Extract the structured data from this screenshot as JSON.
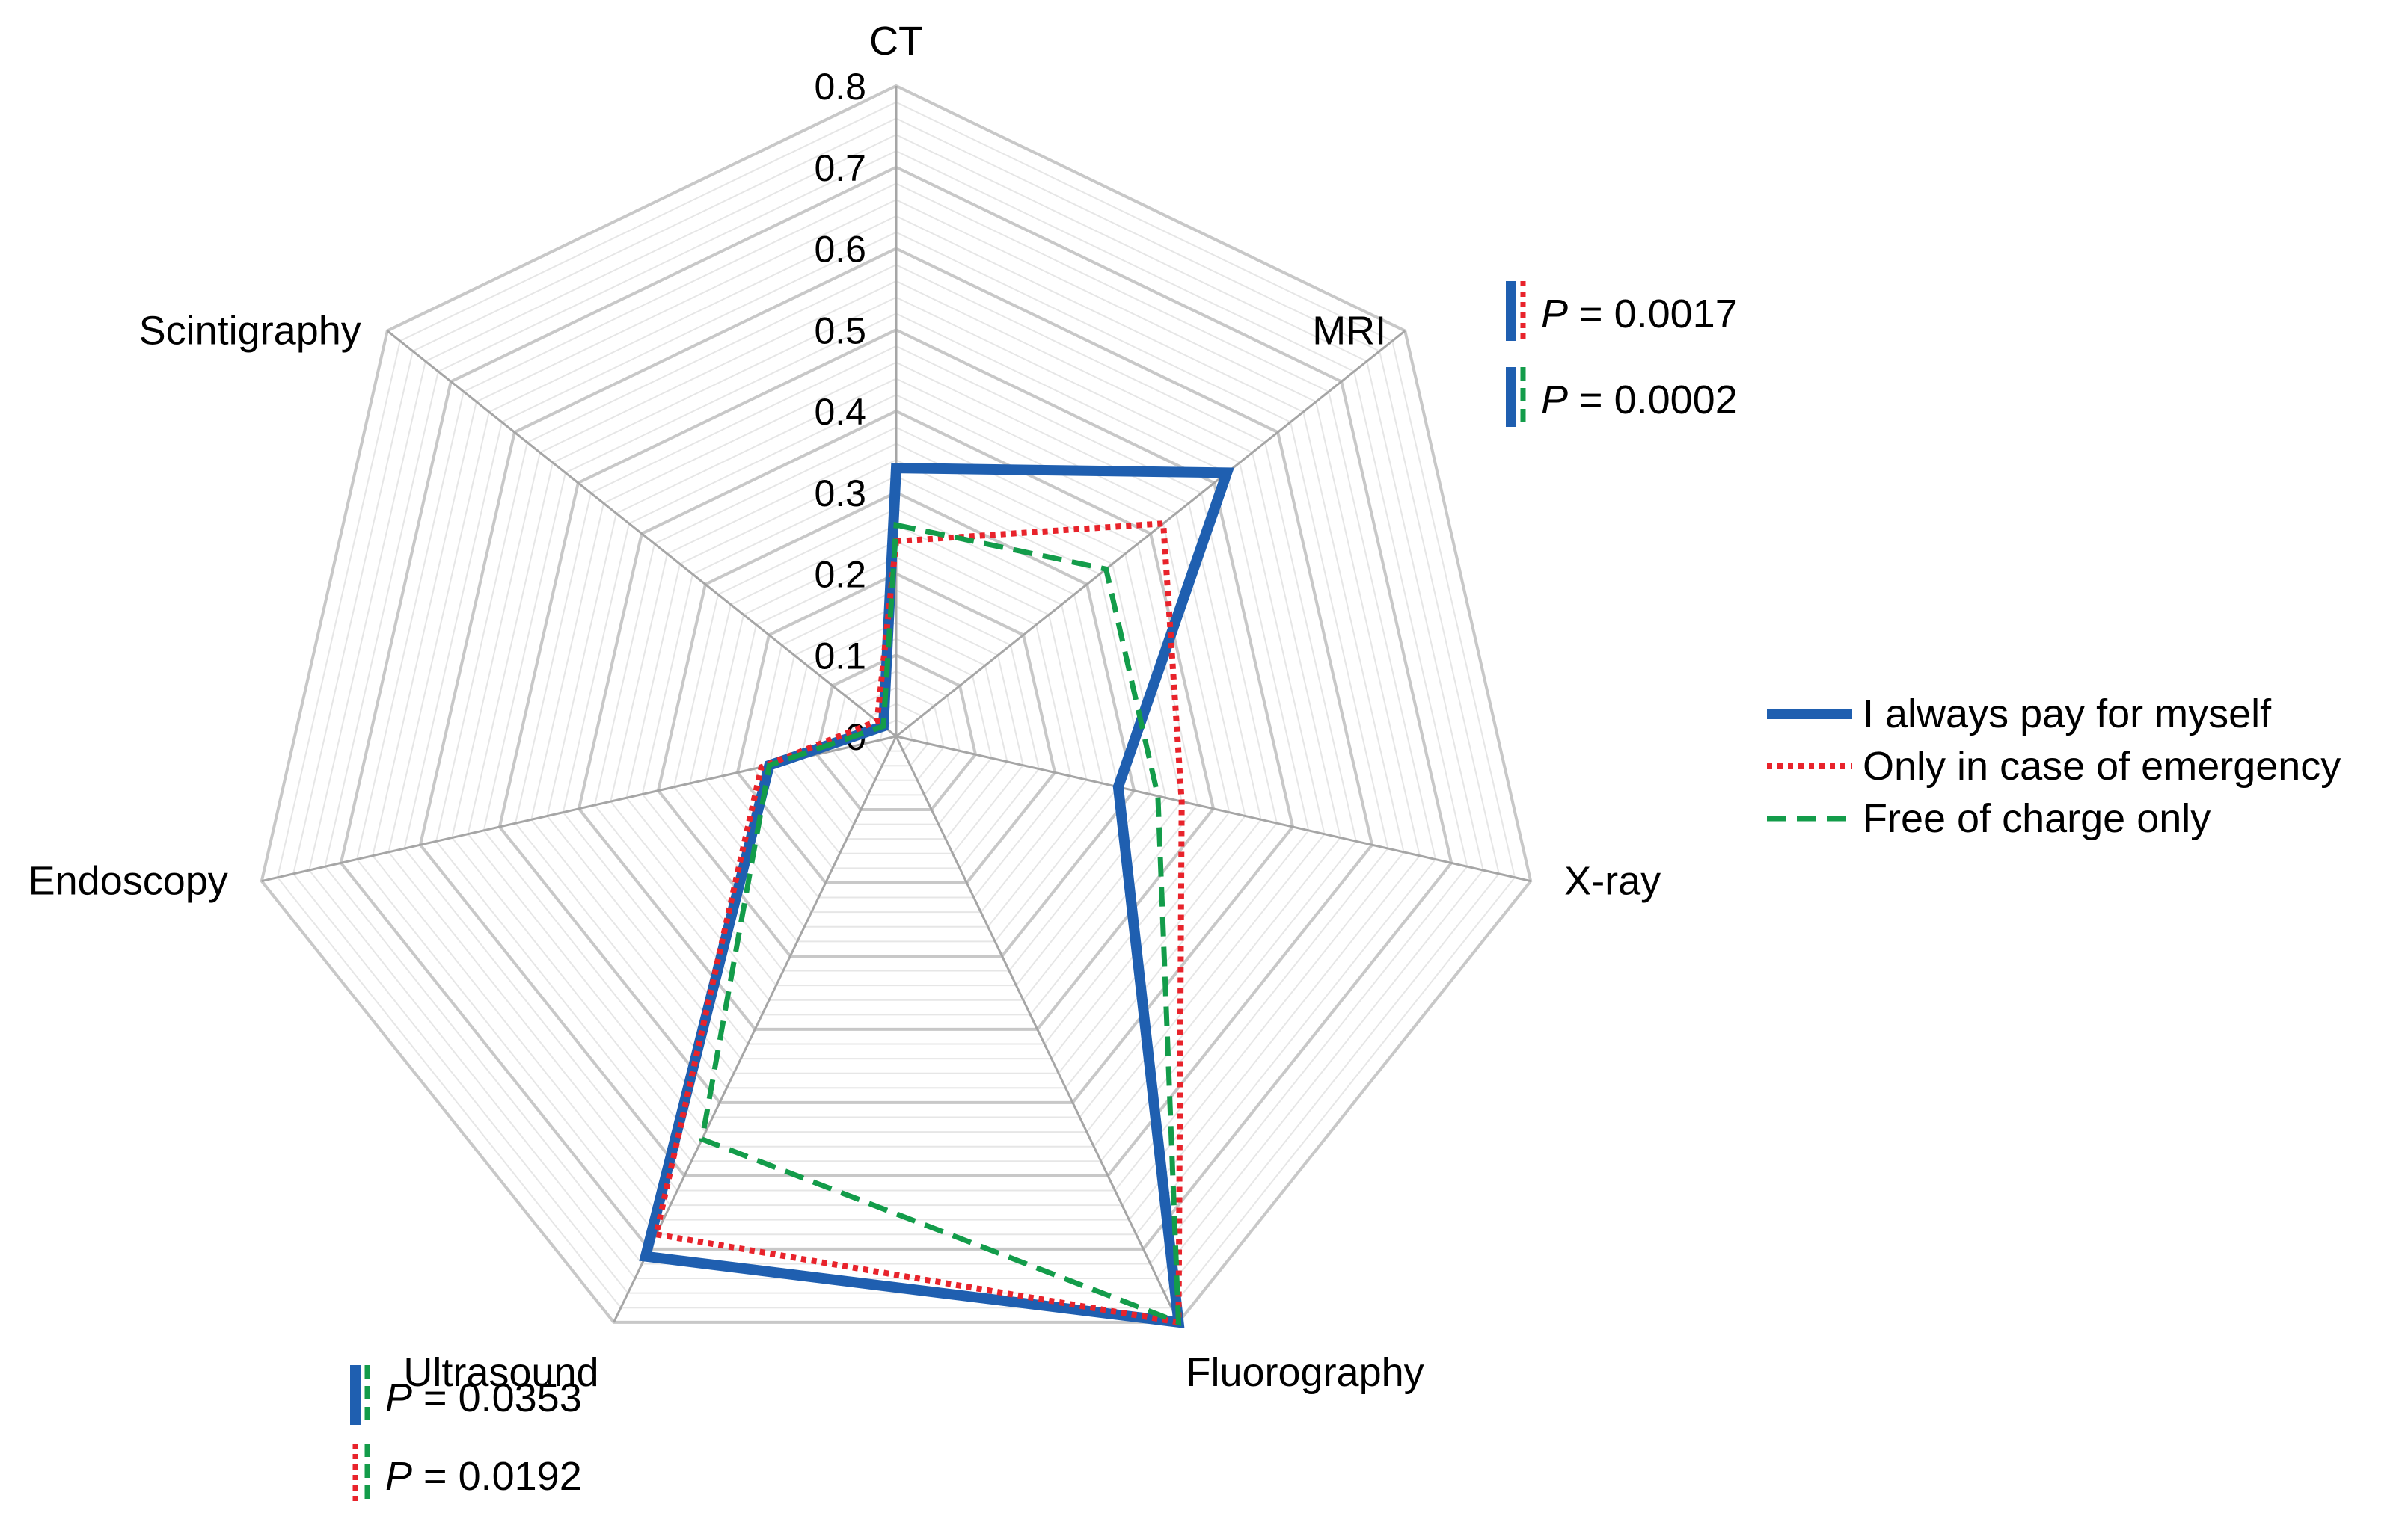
{
  "chart_data": {
    "type": "radar",
    "title": "",
    "categories": [
      "CT",
      "MRI",
      "X-ray",
      "Fluorography",
      "Ultrasound",
      "Endoscopy",
      "Scintigraphy"
    ],
    "radial_ticks": [
      "0",
      "0.1",
      "0.2",
      "0.3",
      "0.4",
      "0.5",
      "0.6",
      "0.7",
      "0.8"
    ],
    "rlim": [
      0,
      0.8
    ],
    "grid": true,
    "series": [
      {
        "name": "I always pay for myself",
        "style": "solid",
        "color": "#1f5fb0",
        "values": [
          0.33,
          0.52,
          0.28,
          0.8,
          0.71,
          0.16,
          0.02
        ]
      },
      {
        "name": "Only in case of emergency",
        "style": "dotted",
        "color": "#e8232b",
        "values": [
          0.24,
          0.42,
          0.36,
          0.8,
          0.68,
          0.17,
          0.03
        ]
      },
      {
        "name": "Free of charge only",
        "style": "dashed",
        "color": "#139c4a",
        "values": [
          0.26,
          0.33,
          0.33,
          0.8,
          0.55,
          0.16,
          0.02
        ]
      }
    ],
    "legend": {
      "position": "right",
      "entries": [
        "I always pay for myself",
        "Only in case of emergency",
        "Free of charge only"
      ]
    },
    "annotations": [
      {
        "near": "MRI",
        "comparison": [
          "I always pay for myself",
          "Only in case of emergency"
        ],
        "label": "P",
        "text": "= 0.0017"
      },
      {
        "near": "MRI",
        "comparison": [
          "I always pay for myself",
          "Free of charge only"
        ],
        "label": "P",
        "text": "= 0.0002"
      },
      {
        "near": "Ultrasound",
        "comparison": [
          "I always pay for myself",
          "Free of charge only"
        ],
        "label": "P",
        "text": "= 0.0353"
      },
      {
        "near": "Ultrasound",
        "comparison": [
          "Only in case of emergency",
          "Free of charge only"
        ],
        "label": "P",
        "text": "= 0.0192"
      }
    ]
  }
}
